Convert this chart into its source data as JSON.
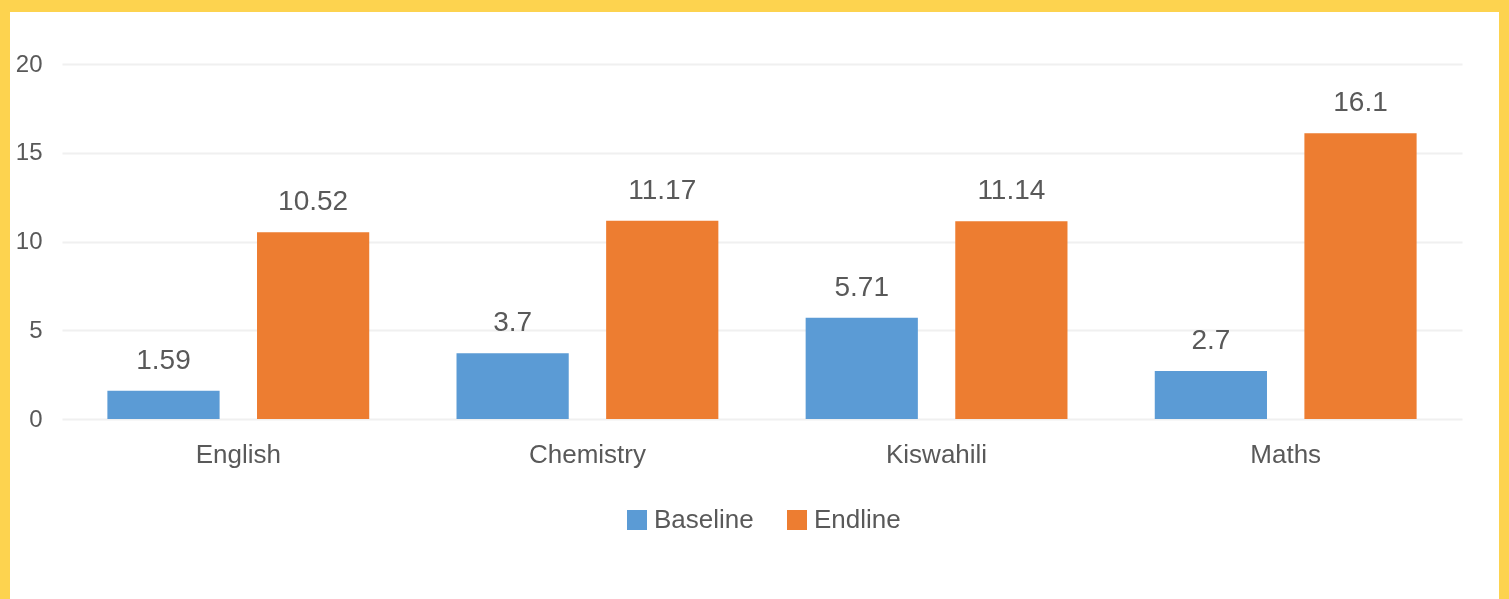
{
  "chart_data": {
    "type": "bar",
    "categories": [
      "English",
      "Chemistry",
      "Kiswahili",
      "Maths"
    ],
    "series": [
      {
        "name": "Baseline",
        "color": "#5b9bd5",
        "values": [
          1.59,
          3.7,
          5.71,
          2.7
        ]
      },
      {
        "name": "Endline",
        "color": "#ed7d31",
        "values": [
          10.52,
          11.17,
          11.14,
          16.1
        ]
      }
    ],
    "ylim": [
      0,
      20
    ],
    "yticks": [
      0,
      5,
      10,
      15,
      20
    ],
    "grid": "y",
    "legend": "bottom",
    "data_labels": true
  }
}
